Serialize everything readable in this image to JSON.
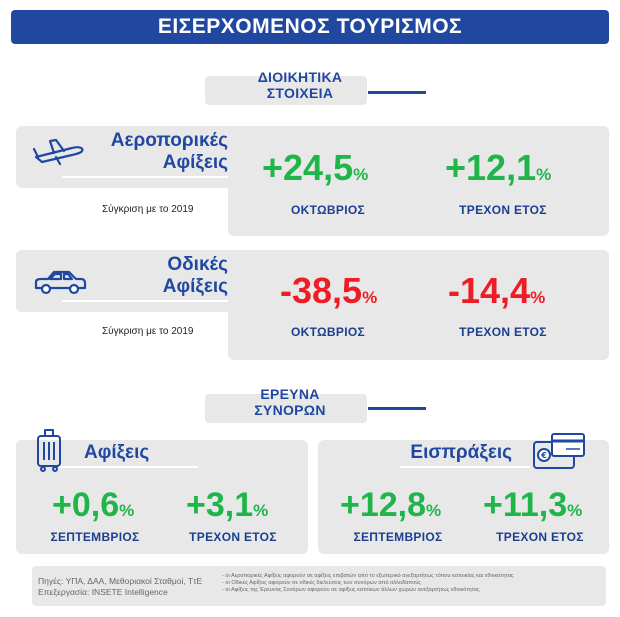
{
  "title": "ΕΙΣΕΡΧΟΜΕΝΟΣ ΤΟΥΡΙΣΜΟΣ",
  "admin_section": {
    "line1": "ΔΙΟΙΚΗΤΙΚΑ",
    "line2": "ΣΤΟΙΧΕΙΑ"
  },
  "air": {
    "title_line1": "Αεροπορικές",
    "title_line2": "Αφίξεις",
    "compare": "Σύγκριση με το 2019",
    "month_value": "+24,5",
    "month_label": "ΟΚΤΩΒΡΙΟΣ",
    "ytd_value": "+12,1",
    "ytd_label": "ΤΡΕΧΟΝ ΕΤΟΣ",
    "pct": "%"
  },
  "road": {
    "title_line1": "Οδικές",
    "title_line2": "Αφίξεις",
    "compare": "Σύγκριση με το 2019",
    "month_value": "-38,5",
    "month_label": "ΟΚΤΩΒΡΙΟΣ",
    "ytd_value": "-14,4",
    "ytd_label": "ΤΡΕΧΟΝ ΕΤΟΣ",
    "pct": "%"
  },
  "border_section": {
    "line1": "ΕΡΕΥΝΑ",
    "line2": "ΣΥΝΟΡΩΝ"
  },
  "arrivals": {
    "title": "Αφίξεις",
    "month_value": "+0,6",
    "month_label": "ΣΕΠΤΕΜΒΡΙΟΣ",
    "ytd_value": "+3,1",
    "ytd_label": "ΤΡΕΧΟΝ ΕΤΟΣ",
    "pct": "%"
  },
  "receipts": {
    "title": "Εισπράξεις",
    "month_value": "+12,8",
    "month_label": "ΣΕΠΤΕΜΒΡΙΟΣ",
    "ytd_value": "+11,3",
    "ytd_label": "ΤΡΕΧΟΝ ΕΤΟΣ",
    "pct": "%"
  },
  "footer": {
    "sources": "Πηγές: ΥΠΑ, ΔΑΑ, Μεθοριακοί Σταθμοί, ΤτΕ",
    "processing": "Επεξεργασία: INSETE Intelligence",
    "note1": "- οι Αεροπορικές Αφίξεις αφορούν σε αφίξεις επιβατών από το εξωτερικό ανεξαρτήτως τόπου κατοικίας και εθνικότητας",
    "note2": "- οι Οδικές Αφίξεις αφορούν σε οδικές διελεύσεις των συνόρων από αλλοδαπούς",
    "note3": "- οι Αφίξεις της Έρευνας Συνόρων αφορούν σε αφίξεις κατοίκων άλλων χωρών ανεξαρτήτως εθνικότητας"
  },
  "colors": {
    "primary": "#2148a0",
    "positive": "#20b54a",
    "negative": "#ee1c25",
    "panel": "#e8e8e8"
  },
  "icons": [
    "airplane-icon",
    "car-icon",
    "luggage-icon",
    "wallet-card-icon"
  ]
}
